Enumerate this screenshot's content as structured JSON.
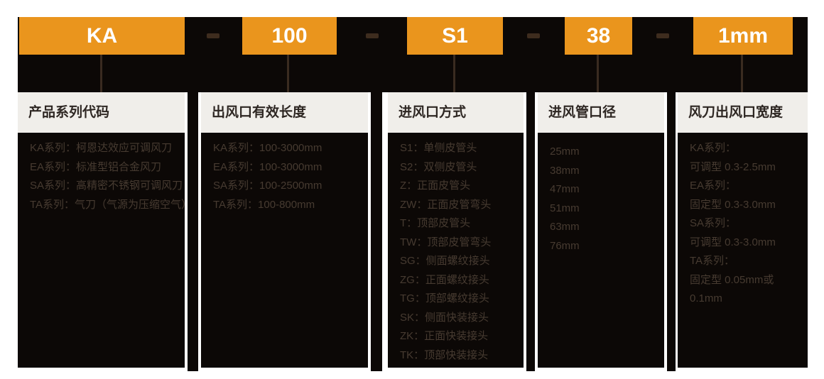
{
  "model_code": {
    "separator": "-",
    "segments": [
      "KA",
      "100",
      "S1",
      "38",
      "1mm"
    ]
  },
  "columns": [
    {
      "title": "产品系列代码",
      "items": [
        "KA系列：柯恩达效应可调风刀",
        "EA系列：标准型铝合金风刀",
        "SA系列：高精密不锈钢可调风刀",
        "TA系列：气刀（气源为压缩空气）"
      ]
    },
    {
      "title": "出风口有效长度",
      "items": [
        "KA系列：100-3000mm",
        "EA系列：100-3000mm",
        "SA系列：100-2500mm",
        "TA系列：100-800mm"
      ]
    },
    {
      "title": "进风口方式",
      "items": [
        "S1：单侧皮管头",
        "S2：双侧皮管头",
        "Z：正面皮管头",
        "ZW：正面皮管弯头",
        "T：顶部皮管头",
        "TW：顶部皮管弯头",
        "SG：侧面螺纹接头",
        "ZG：正面螺纹接头",
        "TG：顶部螺纹接头",
        "SK：侧面快装接头",
        "ZK：正面快装接头",
        "TK：顶部快装接头"
      ]
    },
    {
      "title": "进风管口径",
      "items": [
        "25mm",
        "38mm",
        "47mm",
        "51mm",
        "63mm",
        "76mm"
      ]
    },
    {
      "title": "风刀出风口宽度",
      "items": [
        "KA系列：",
        "可调型 0.3-2.5mm",
        "EA系列：",
        "固定型 0.3-3.0mm",
        "SA系列：",
        "可调型 0.3-3.0mm",
        "TA系列：",
        "固定型 0.05mm或",
        "0.1mm"
      ]
    }
  ],
  "colors": {
    "accent_orange": "#ea951d",
    "panel_black": "#0c0806",
    "header_band": "#f0eeea",
    "body_text": "#473b31",
    "connector_brown": "#3e2c1e"
  }
}
